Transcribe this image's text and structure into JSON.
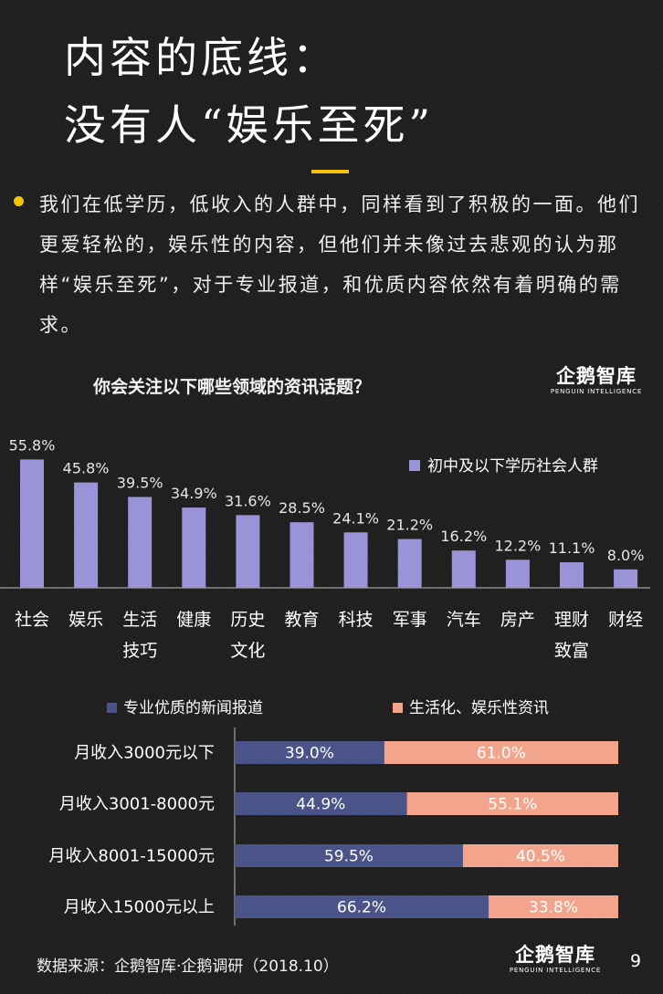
{
  "page": {
    "title_line1": "内容的底线：",
    "title_line2": "没有人“娱乐至死”",
    "paragraph": "我们在低学历，低收入的人群中，同样看到了积极的一面。他们更爱轻松的，娱乐性的内容，但他们并未像过去悲观的认为那样“娱乐至死”，对于专业报道，和优质内容依然有着明确的需求。",
    "source": "数据来源：企鹅智库·企鹅调研（2018.10）",
    "page_number": "9",
    "logo_text": "企鹅智库",
    "logo_sub": "PENGUIN INTELLIGENCE",
    "colors": {
      "accent": "#f5c400",
      "bar": "#9b93d8",
      "professional": "#4b5488",
      "entertainment": "#f2a58c",
      "background": "#1f1f1f"
    }
  },
  "chart_data": [
    {
      "type": "bar",
      "title": "你会关注以下哪些领域的资讯话题？",
      "legend_position": "top-right",
      "categories": [
        [
          "社会"
        ],
        [
          "娱乐"
        ],
        [
          "生活",
          "技巧"
        ],
        [
          "健康"
        ],
        [
          "历史",
          "文化"
        ],
        [
          "教育"
        ],
        [
          "科技"
        ],
        [
          "军事"
        ],
        [
          "汽车"
        ],
        [
          "房产"
        ],
        [
          "理财",
          "致富"
        ],
        [
          "财经"
        ]
      ],
      "series": [
        {
          "name": "初中及以下学历社会人群",
          "values": [
            55.8,
            45.8,
            39.5,
            34.9,
            31.6,
            28.5,
            24.1,
            21.2,
            16.2,
            12.2,
            11.1,
            8.0
          ],
          "labels": [
            "55.8%",
            "45.8%",
            "39.5%",
            "34.9%",
            "31.6%",
            "28.5%",
            "24.1%",
            "21.2%",
            "16.2%",
            "12.2%",
            "11.1%",
            "8.0%"
          ],
          "color": "#9b93d8"
        }
      ],
      "ylim": [
        0,
        60
      ]
    },
    {
      "type": "bar",
      "orientation": "horizontal",
      "stacked": true,
      "legend_position": "top",
      "categories": [
        "月收入3000元以下",
        "月收入3001-8000元",
        "月收入8001-15000元",
        "月收入15000元以上"
      ],
      "series": [
        {
          "name": "专业优质的新闻报道",
          "values": [
            39.0,
            44.9,
            59.5,
            66.2
          ],
          "labels": [
            "39.0%",
            "44.9%",
            "59.5%",
            "66.2%"
          ],
          "color": "#4b5488"
        },
        {
          "name": "生活化、娱乐性资讯",
          "values": [
            61.0,
            55.1,
            40.5,
            33.8
          ],
          "labels": [
            "61.0%",
            "55.1%",
            "40.5%",
            "33.8%"
          ],
          "color": "#f2a58c"
        }
      ],
      "xlim": [
        0,
        100
      ]
    }
  ]
}
